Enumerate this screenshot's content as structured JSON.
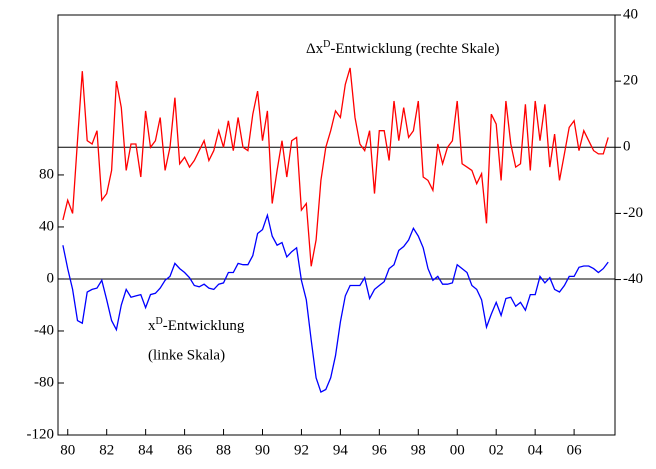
{
  "chart_data": {
    "type": "line",
    "annotations": [
      {
        "parts": [
          "Δx",
          "D",
          "-Entwicklung (rechte Skale)"
        ]
      },
      {
        "parts": [
          "x",
          "D",
          "-Entwicklung"
        ]
      },
      {
        "parts": [
          "(linke Skala)"
        ]
      }
    ],
    "x": [
      1979.75,
      1980,
      1980.25,
      1980.5,
      1980.75,
      1981,
      1981.25,
      1981.5,
      1981.75,
      1982,
      1982.25,
      1982.5,
      1982.75,
      1983,
      1983.25,
      1983.5,
      1983.75,
      1984,
      1984.25,
      1984.5,
      1984.75,
      1985,
      1985.25,
      1985.5,
      1985.75,
      1986,
      1986.25,
      1986.5,
      1986.75,
      1987,
      1987.25,
      1987.5,
      1987.75,
      1988,
      1988.25,
      1988.5,
      1988.75,
      1989,
      1989.25,
      1989.5,
      1989.75,
      1990,
      1990.25,
      1990.5,
      1990.75,
      1991,
      1991.25,
      1991.5,
      1991.75,
      1992,
      1992.25,
      1992.5,
      1992.75,
      1993,
      1993.25,
      1993.5,
      1993.75,
      1994,
      1994.25,
      1994.5,
      1994.75,
      1995,
      1995.25,
      1995.5,
      1995.75,
      1996,
      1996.25,
      1996.5,
      1996.75,
      1997,
      1997.25,
      1997.5,
      1997.75,
      1998,
      1998.25,
      1998.5,
      1998.75,
      1999,
      1999.25,
      1999.5,
      1999.75,
      2000,
      2000.25,
      2000.5,
      2000.75,
      2001,
      2001.25,
      2001.5,
      2001.75,
      2002,
      2002.25,
      2002.5,
      2002.75,
      2003,
      2003.25,
      2003.5,
      2003.75,
      2004,
      2004.25,
      2004.5,
      2004.75,
      2005,
      2005.25,
      2005.5,
      2005.75,
      2006,
      2006.25,
      2006.5,
      2006.75,
      2007,
      2007.25,
      2007.5,
      2007.75
    ],
    "series": [
      {
        "color": "#0000ff",
        "values": [
          26,
          8,
          -8,
          -32,
          -34,
          -10,
          -8,
          -7,
          -1,
          -16,
          -32,
          -39,
          -20,
          -8,
          -14,
          -13,
          -12,
          -22,
          -12,
          -11,
          -7,
          -1,
          2,
          12,
          8,
          5,
          1,
          -5,
          -6,
          -4,
          -7,
          -8,
          -4,
          -3,
          5,
          5,
          12,
          11,
          11,
          18,
          35,
          38,
          49,
          33,
          26,
          28,
          17,
          21,
          24,
          -1,
          -16,
          -47,
          -76,
          -87,
          -85,
          -76,
          -59,
          -33,
          -13,
          -5,
          -5,
          -5,
          1,
          -15,
          -8,
          -5,
          -2,
          8,
          11,
          22,
          25,
          30,
          39,
          33,
          24,
          8,
          -1,
          2,
          -4,
          -4,
          -3,
          11,
          8,
          5,
          -5,
          -8,
          -16,
          -37,
          -27,
          -18,
          -28,
          -15,
          -14,
          -21,
          -18,
          -24,
          -12,
          -12,
          2,
          -3,
          1,
          -8,
          -10,
          -5,
          2,
          2,
          9,
          10,
          10,
          8,
          5,
          8,
          13
        ]
      },
      {
        "color": "#ff0000",
        "axis": "y2",
        "values": [
          -22,
          -16,
          -20,
          2,
          23,
          2,
          1,
          5,
          -16,
          -14,
          -7,
          20,
          12,
          -7,
          1,
          1,
          -9,
          11,
          0,
          2,
          9,
          -7,
          0,
          15,
          -5,
          -3,
          -6,
          -4,
          -1,
          2,
          -4,
          -1,
          5,
          0,
          8,
          -1,
          9,
          0,
          -1,
          10,
          17,
          2,
          11,
          -17,
          -7,
          2,
          -9,
          2,
          3,
          -19,
          -17,
          -36,
          -28,
          -10,
          0,
          5,
          11,
          9,
          19,
          24,
          9,
          1,
          -1,
          5,
          -14,
          5,
          5,
          -4,
          14,
          2,
          12,
          3,
          5,
          14,
          -9,
          -10,
          -13,
          1,
          -5,
          0,
          2,
          14,
          -5,
          -6,
          -7,
          -11,
          -8,
          -23,
          10,
          7,
          -10,
          14,
          1,
          -6,
          -5,
          13,
          -7,
          14,
          2,
          13,
          -6,
          4,
          -10,
          -2,
          6,
          8,
          -1,
          5,
          2,
          -1,
          -2,
          -2,
          3
        ]
      }
    ],
    "xlim": [
      1979.5,
      2008.1
    ],
    "xticks": [
      {
        "value": 1980,
        "label": "80"
      },
      {
        "value": 1982,
        "label": "82"
      },
      {
        "value": 1984,
        "label": "84"
      },
      {
        "value": 1986,
        "label": "86"
      },
      {
        "value": 1988,
        "label": "88"
      },
      {
        "value": 1990,
        "label": "90"
      },
      {
        "value": 1992,
        "label": "92"
      },
      {
        "value": 1994,
        "label": "94"
      },
      {
        "value": 1996,
        "label": "96"
      },
      {
        "value": 1998,
        "label": "98"
      },
      {
        "value": 2000,
        "label": "00"
      },
      {
        "value": 2002,
        "label": "02"
      },
      {
        "value": 2004,
        "label": "04"
      },
      {
        "value": 2006,
        "label": "06"
      }
    ],
    "ylim": [
      -120,
      203
    ],
    "yticks": [
      -120,
      -80,
      -40,
      0,
      40,
      80
    ],
    "y2lim": [
      -87,
      40
    ],
    "y2ticks": [
      -40,
      -20,
      0,
      20,
      40
    ],
    "zero_lines": true
  }
}
